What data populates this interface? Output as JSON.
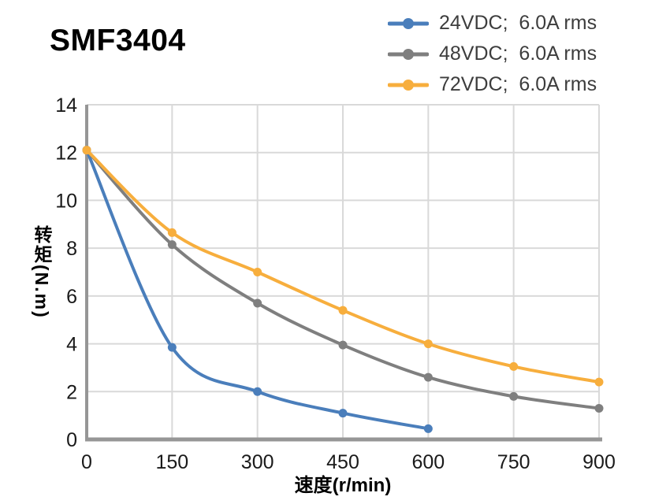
{
  "chart_data": {
    "type": "line",
    "title": "SMF3404",
    "xlabel": "速度(r/min)",
    "ylabel": "转矩(N.m)",
    "xlim": [
      0,
      900
    ],
    "ylim": [
      0,
      14
    ],
    "x_ticks": [
      0,
      150,
      300,
      450,
      600,
      750,
      900
    ],
    "y_ticks": [
      0,
      2,
      4,
      6,
      8,
      10,
      12,
      14
    ],
    "grid": true,
    "legend_position": "top-right",
    "colors": {
      "grid": "#D9D9D9",
      "axis": "#969696",
      "tick_text": "#1A1A1A",
      "legend_text": "#3D3D3D",
      "title_text": "#000000"
    },
    "series": [
      {
        "id": "24vdc",
        "label": "24VDC;  6.0A rms",
        "color": "#4A7EBB",
        "x": [
          0,
          150,
          300,
          450,
          600
        ],
        "values": [
          12.1,
          3.85,
          2.0,
          1.1,
          0.45
        ]
      },
      {
        "id": "48vdc",
        "label": "48VDC;  6.0A rms",
        "color": "#7F7F7F",
        "x": [
          0,
          150,
          300,
          450,
          600,
          750,
          900
        ],
        "values": [
          12.1,
          8.15,
          5.7,
          3.95,
          2.6,
          1.8,
          1.3
        ]
      },
      {
        "id": "72vdc",
        "label": "72VDC;  6.0A rms",
        "color": "#F7AE3D",
        "x": [
          0,
          150,
          300,
          450,
          600,
          750,
          900
        ],
        "values": [
          12.1,
          8.65,
          7.0,
          5.4,
          4.0,
          3.05,
          2.4
        ]
      }
    ]
  }
}
